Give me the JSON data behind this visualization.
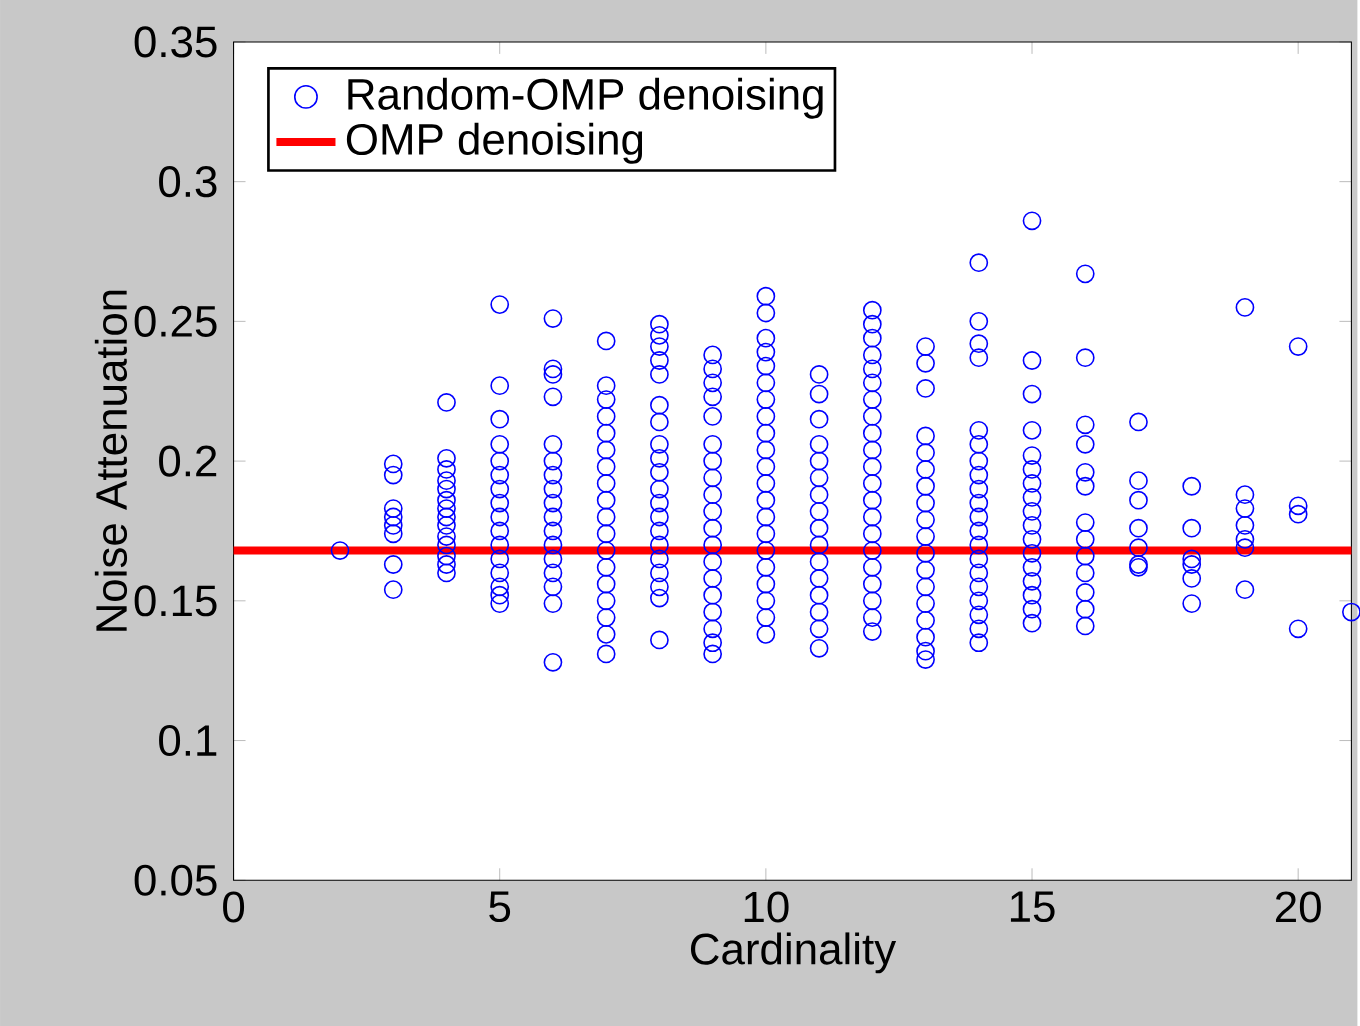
{
  "chart_data": {
    "type": "scatter",
    "xlabel": "Cardinality",
    "ylabel": "Noise Attenuation",
    "xlim": [
      0,
      21
    ],
    "ylim": [
      0.05,
      0.35
    ],
    "xticks": [
      0,
      5,
      10,
      15,
      20
    ],
    "yticks": [
      0.05,
      0.1,
      0.15,
      0.2,
      0.25,
      0.3,
      0.35
    ],
    "grid": false,
    "legend": "top left",
    "marker": "circle",
    "series": [
      {
        "name": "Random-OMP denoising",
        "color": "#0000ff",
        "x": [
          2,
          3,
          3,
          3,
          3,
          3,
          3,
          3,
          3,
          4,
          4,
          4,
          4,
          4,
          4,
          4,
          4,
          4,
          4,
          4,
          4,
          4,
          4,
          5,
          5,
          5,
          5,
          5,
          5,
          5,
          5,
          5,
          5,
          5,
          5,
          5,
          5,
          5,
          5,
          6,
          6,
          6,
          6,
          6,
          6,
          6,
          6,
          6,
          6,
          6,
          6,
          6,
          6,
          6,
          6,
          6,
          7,
          7,
          7,
          7,
          7,
          7,
          7,
          7,
          7,
          7,
          7,
          7,
          7,
          7,
          7,
          7,
          7,
          7,
          8,
          8,
          8,
          8,
          8,
          8,
          8,
          8,
          8,
          8,
          8,
          8,
          8,
          8,
          8,
          8,
          8,
          8,
          8,
          8,
          9,
          9,
          9,
          9,
          9,
          9,
          9,
          9,
          9,
          9,
          9,
          9,
          9,
          9,
          9,
          9,
          9,
          9,
          9,
          10,
          10,
          10,
          10,
          10,
          10,
          10,
          10,
          10,
          10,
          10,
          10,
          10,
          10,
          10,
          10,
          10,
          10,
          10,
          10,
          10,
          11,
          11,
          11,
          11,
          11,
          11,
          11,
          11,
          11,
          11,
          11,
          11,
          11,
          11,
          11,
          11,
          12,
          12,
          12,
          12,
          12,
          12,
          12,
          12,
          12,
          12,
          12,
          12,
          12,
          12,
          12,
          12,
          12,
          12,
          12,
          12,
          12,
          13,
          13,
          13,
          13,
          13,
          13,
          13,
          13,
          13,
          13,
          13,
          13,
          13,
          13,
          13,
          13,
          13,
          13,
          14,
          14,
          14,
          14,
          14,
          14,
          14,
          14,
          14,
          14,
          14,
          14,
          14,
          14,
          14,
          14,
          14,
          14,
          14,
          14,
          15,
          15,
          15,
          15,
          15,
          15,
          15,
          15,
          15,
          15,
          15,
          15,
          15,
          15,
          15,
          15,
          15,
          16,
          16,
          16,
          16,
          16,
          16,
          16,
          16,
          16,
          16,
          16,
          16,
          16,
          17,
          17,
          17,
          17,
          17,
          17,
          17,
          18,
          18,
          18,
          18,
          18,
          18,
          19,
          19,
          19,
          19,
          19,
          19,
          19,
          20,
          20,
          20,
          20,
          21
        ],
        "values": [
          0.168,
          0.199,
          0.195,
          0.183,
          0.18,
          0.177,
          0.174,
          0.163,
          0.154,
          0.221,
          0.201,
          0.197,
          0.193,
          0.19,
          0.186,
          0.183,
          0.18,
          0.177,
          0.173,
          0.17,
          0.166,
          0.163,
          0.16,
          0.256,
          0.227,
          0.215,
          0.206,
          0.2,
          0.195,
          0.19,
          0.185,
          0.18,
          0.175,
          0.17,
          0.165,
          0.16,
          0.155,
          0.152,
          0.149,
          0.251,
          0.233,
          0.231,
          0.223,
          0.206,
          0.2,
          0.195,
          0.19,
          0.185,
          0.18,
          0.175,
          0.17,
          0.165,
          0.16,
          0.155,
          0.149,
          0.128,
          0.243,
          0.227,
          0.222,
          0.216,
          0.21,
          0.204,
          0.198,
          0.192,
          0.186,
          0.18,
          0.174,
          0.168,
          0.162,
          0.156,
          0.15,
          0.144,
          0.138,
          0.131,
          0.249,
          0.245,
          0.241,
          0.236,
          0.231,
          0.22,
          0.214,
          0.206,
          0.201,
          0.196,
          0.19,
          0.185,
          0.18,
          0.175,
          0.17,
          0.165,
          0.16,
          0.155,
          0.151,
          0.136,
          0.238,
          0.233,
          0.228,
          0.223,
          0.216,
          0.206,
          0.2,
          0.194,
          0.188,
          0.182,
          0.176,
          0.17,
          0.164,
          0.158,
          0.152,
          0.146,
          0.14,
          0.135,
          0.131,
          0.259,
          0.253,
          0.244,
          0.239,
          0.234,
          0.228,
          0.222,
          0.216,
          0.21,
          0.204,
          0.198,
          0.192,
          0.186,
          0.18,
          0.174,
          0.168,
          0.162,
          0.156,
          0.15,
          0.144,
          0.138,
          0.231,
          0.224,
          0.215,
          0.206,
          0.2,
          0.194,
          0.188,
          0.182,
          0.176,
          0.17,
          0.164,
          0.158,
          0.152,
          0.146,
          0.14,
          0.133,
          0.254,
          0.249,
          0.244,
          0.238,
          0.233,
          0.228,
          0.222,
          0.216,
          0.21,
          0.204,
          0.198,
          0.192,
          0.186,
          0.18,
          0.174,
          0.168,
          0.162,
          0.156,
          0.15,
          0.144,
          0.139,
          0.241,
          0.235,
          0.226,
          0.209,
          0.203,
          0.197,
          0.191,
          0.185,
          0.179,
          0.173,
          0.167,
          0.161,
          0.155,
          0.149,
          0.143,
          0.137,
          0.132,
          0.129,
          0.271,
          0.25,
          0.242,
          0.237,
          0.211,
          0.206,
          0.2,
          0.195,
          0.19,
          0.185,
          0.18,
          0.175,
          0.17,
          0.165,
          0.16,
          0.155,
          0.15,
          0.145,
          0.14,
          0.135,
          0.286,
          0.236,
          0.224,
          0.211,
          0.202,
          0.197,
          0.192,
          0.187,
          0.182,
          0.177,
          0.172,
          0.167,
          0.162,
          0.157,
          0.152,
          0.147,
          0.142,
          0.267,
          0.237,
          0.213,
          0.206,
          0.196,
          0.191,
          0.178,
          0.172,
          0.166,
          0.16,
          0.153,
          0.147,
          0.141,
          0.214,
          0.193,
          0.186,
          0.176,
          0.169,
          0.163,
          0.162,
          0.191,
          0.176,
          0.165,
          0.163,
          0.158,
          0.149,
          0.255,
          0.188,
          0.183,
          0.177,
          0.172,
          0.169,
          0.154,
          0.241,
          0.184,
          0.181,
          0.14,
          0.146
        ]
      },
      {
        "name": "OMP denoising",
        "type": "line",
        "color": "#ff0000",
        "marker": "none",
        "line_style": "solid",
        "x": [
          0,
          21
        ],
        "values": [
          0.168,
          0.168
        ]
      }
    ]
  }
}
